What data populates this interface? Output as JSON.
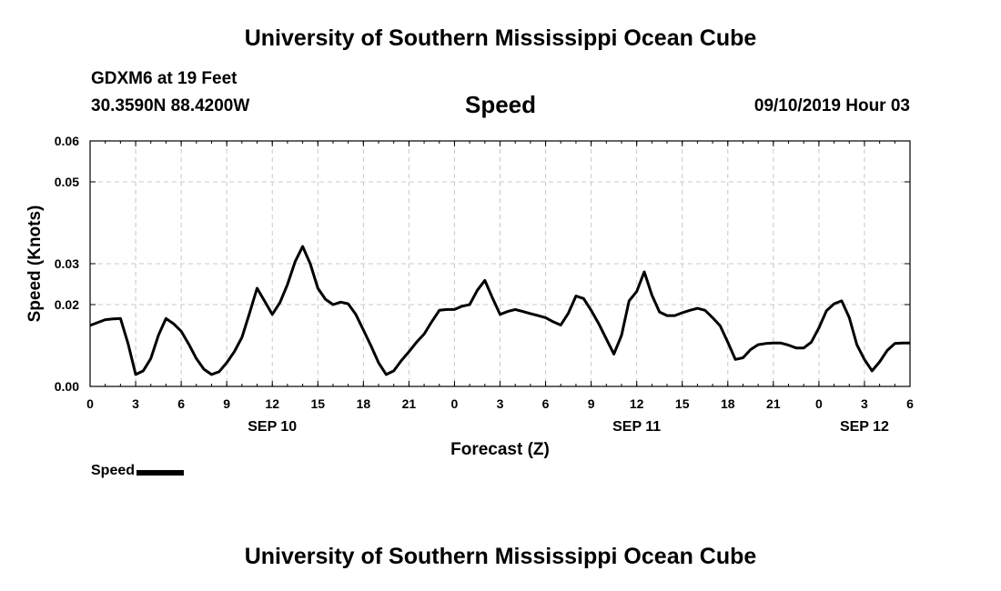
{
  "header": {
    "title": "University of Southern Mississippi Ocean Cube",
    "station": "GDXM6 at 19 Feet",
    "coordinates": "30.3590N 88.4200W",
    "variable": "Speed",
    "datetime": "09/10/2019 Hour 03"
  },
  "footer": {
    "title": "University of Southern Mississippi Ocean Cube"
  },
  "legend": {
    "label": "Speed"
  },
  "colors": {
    "line": "#000000",
    "grid": "#c8c8c8",
    "background": "#ffffff"
  },
  "chart_data": {
    "type": "line",
    "title": "Speed",
    "xlabel": "Forecast (Z)",
    "ylabel": "Speed (Knots)",
    "xlim": [
      0,
      54
    ],
    "ylim": [
      0.0,
      0.06
    ],
    "grid": true,
    "legend_position": "bottom-left",
    "x_ticks": [
      0,
      3,
      6,
      9,
      12,
      15,
      18,
      21,
      24,
      27,
      30,
      33,
      36,
      39,
      42,
      45,
      48,
      51,
      54
    ],
    "x_tick_labels": [
      "0",
      "3",
      "6",
      "9",
      "12",
      "15",
      "18",
      "21",
      "0",
      "3",
      "6",
      "9",
      "12",
      "15",
      "18",
      "21",
      "0",
      "3",
      "6"
    ],
    "y_ticks": [
      0.0,
      0.02,
      0.03,
      0.05,
      0.06
    ],
    "y_tick_labels": [
      "0.00",
      "0.02",
      "0.03",
      "0.05",
      "0.06"
    ],
    "date_labels": [
      {
        "x": 12,
        "label": "SEP 10"
      },
      {
        "x": 36,
        "label": "SEP 11"
      },
      {
        "x": 51,
        "label": "SEP 12"
      }
    ],
    "series": [
      {
        "name": "Speed",
        "x": [
          0,
          1,
          1.5,
          2,
          2.5,
          3,
          3.5,
          4,
          4.5,
          5,
          5.5,
          6,
          6.5,
          7,
          7.5,
          8,
          8.5,
          9,
          9.5,
          10,
          10.5,
          11,
          11.5,
          12,
          12.5,
          13,
          13.5,
          14,
          14.5,
          15,
          15.5,
          16,
          16.5,
          17,
          17.5,
          18,
          18.5,
          19,
          19.5,
          20,
          20.5,
          21,
          21.5,
          22,
          22.5,
          23,
          23.5,
          24,
          24.5,
          25,
          25.5,
          26,
          26.5,
          27,
          27.5,
          28,
          28.5,
          29,
          29.5,
          30,
          30.5,
          31,
          31.5,
          32,
          32.5,
          33,
          33.5,
          34,
          34.5,
          35,
          35.5,
          36,
          36.5,
          37,
          37.5,
          38,
          38.5,
          39,
          39.5,
          40,
          40.5,
          41,
          41.5,
          42,
          42.5,
          43,
          43.5,
          44,
          44.5,
          45,
          45.5,
          46,
          46.5,
          47,
          47.5,
          48,
          48.5,
          49,
          49.5,
          50,
          50.5,
          51,
          51.5,
          52,
          52.5,
          53,
          53.5,
          54
        ],
        "values": [
          0.0149,
          0.0163,
          0.0165,
          0.0166,
          0.0105,
          0.0029,
          0.0038,
          0.0068,
          0.0125,
          0.0166,
          0.0153,
          0.0135,
          0.0103,
          0.0068,
          0.0042,
          0.0029,
          0.0036,
          0.0058,
          0.0085,
          0.012,
          0.0179,
          0.024,
          0.0208,
          0.0176,
          0.0205,
          0.0249,
          0.0305,
          0.0342,
          0.03,
          0.024,
          0.0213,
          0.02,
          0.0206,
          0.0202,
          0.0176,
          0.0138,
          0.0099,
          0.0058,
          0.0029,
          0.0038,
          0.0063,
          0.0085,
          0.0108,
          0.0128,
          0.0158,
          0.0186,
          0.0188,
          0.0188,
          0.0196,
          0.02,
          0.0235,
          0.0259,
          0.0216,
          0.0176,
          0.0183,
          0.0188,
          0.0183,
          0.0178,
          0.0173,
          0.0168,
          0.0158,
          0.015,
          0.0179,
          0.0221,
          0.0215,
          0.0186,
          0.0153,
          0.0116,
          0.0079,
          0.0125,
          0.0209,
          0.0232,
          0.028,
          0.0223,
          0.0182,
          0.0173,
          0.0173,
          0.018,
          0.0186,
          0.0191,
          0.0186,
          0.0168,
          0.0148,
          0.0108,
          0.0066,
          0.007,
          0.009,
          0.0102,
          0.0105,
          0.0106,
          0.0106,
          0.0101,
          0.0094,
          0.0094,
          0.0108,
          0.0143,
          0.0185,
          0.0202,
          0.0209,
          0.0168,
          0.0102,
          0.0066,
          0.0038,
          0.006,
          0.0088,
          0.0105,
          0.0106,
          0.0106
        ]
      }
    ]
  }
}
